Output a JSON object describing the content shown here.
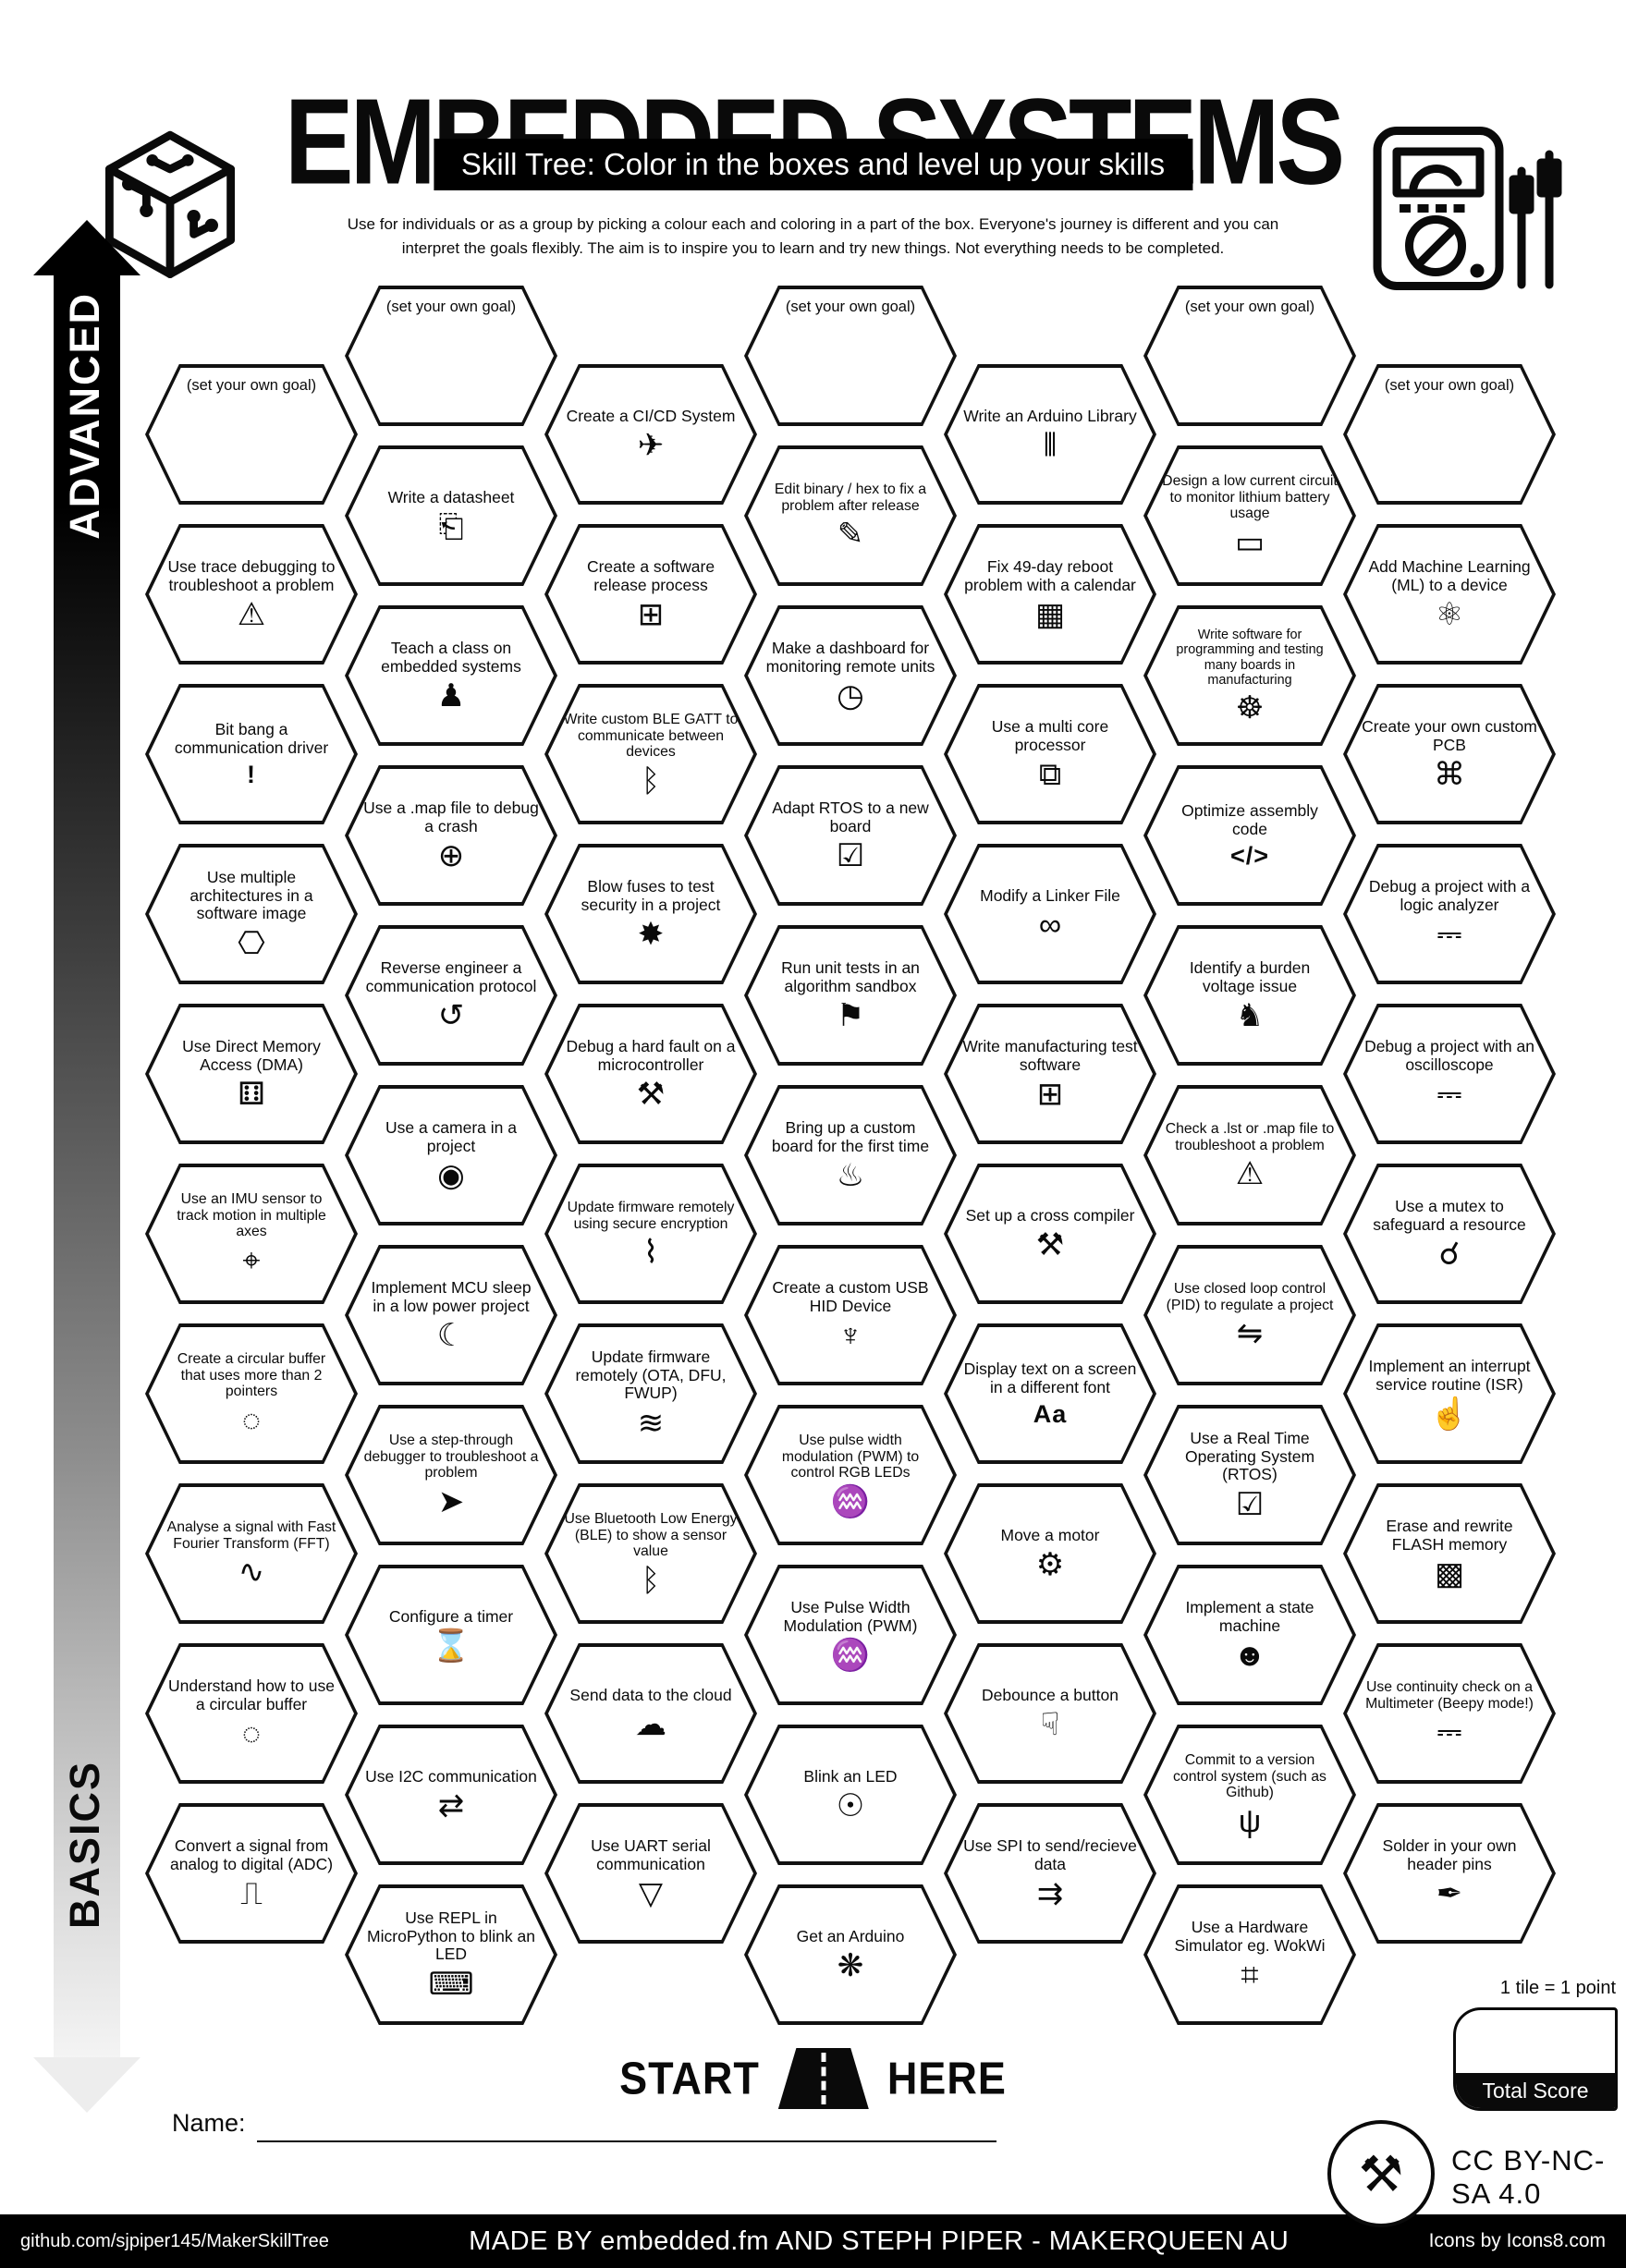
{
  "title": "EMBEDDED SYSTEMS",
  "banner": "Skill Tree:  Color in the boxes and level up your skills",
  "intro": {
    "line1": "Use for individuals or as a group by picking a colour each and coloring in a part of the box.  Everyone's journey is different and you can",
    "line2": "interpret the goals flexibly.  The aim is to inspire you to learn and try new things. Not everything needs to be completed."
  },
  "axis": {
    "advanced": "ADVANCED",
    "basics": "BASICS"
  },
  "start": {
    "word1": "START",
    "word2": "HERE"
  },
  "name_label": "Name:",
  "score": {
    "note": "1 tile = 1 point",
    "label": "Total Score"
  },
  "license": "CC BY-NC-SA 4.0",
  "footer": {
    "left": "github.com/sjpiper145/MakerSkillTree",
    "center": "MADE BY embedded.fm AND STEPH PIPER  -  MAKERQUEEN AU",
    "right": "Icons by Icons8.com"
  },
  "colors": {
    "ink": "#0a0a0a",
    "paper": "#ffffff"
  },
  "tiles": [
    {
      "c": 1,
      "r": 0,
      "goal": true,
      "label": "(set your own goal)",
      "icon": null
    },
    {
      "c": 1,
      "r": 1,
      "label": "Use trace debugging to troubleshoot a problem",
      "icon": "monitor-alert-icon"
    },
    {
      "c": 1,
      "r": 2,
      "label": "Bit bang a communication driver",
      "icon": "exclamation-icon"
    },
    {
      "c": 1,
      "r": 3,
      "label": "Use multiple architectures in a software image",
      "icon": "cube-network-icon"
    },
    {
      "c": 1,
      "r": 4,
      "label": "Use Direct Memory Access (DMA)",
      "icon": "dice-icon"
    },
    {
      "c": 1,
      "r": 5,
      "label": "Use an IMU sensor to track motion in multiple axes",
      "icon": "axes-cube-icon"
    },
    {
      "c": 1,
      "r": 6,
      "label": "Create a circular buffer that uses more than 2 pointers",
      "icon": "ring-buffer-icon"
    },
    {
      "c": 1,
      "r": 7,
      "label": "Analyse a signal with Fast Fourier Transform (FFT)",
      "icon": "waveform-magnifier-icon"
    },
    {
      "c": 1,
      "r": 8,
      "label": "Understand how to use a circular buffer",
      "icon": "ring-buffer-icon"
    },
    {
      "c": 1,
      "r": 9,
      "label": "Convert a signal from analog to digital (ADC)",
      "icon": "adc-wave-icon"
    },
    {
      "c": 2,
      "r": 0,
      "goal": true,
      "label": "(set your own goal)",
      "icon": null
    },
    {
      "c": 2,
      "r": 1,
      "label": "Write a datasheet",
      "icon": "document-icon"
    },
    {
      "c": 2,
      "r": 2,
      "label": "Teach a class on embedded systems",
      "icon": "teacher-icon"
    },
    {
      "c": 2,
      "r": 3,
      "label": "Use a .map file to debug a crash",
      "icon": "globe-icon"
    },
    {
      "c": 2,
      "r": 4,
      "label": "Reverse engineer a communication protocol",
      "icon": "gear-arrows-icon"
    },
    {
      "c": 2,
      "r": 5,
      "label": "Use a camera in a project",
      "icon": "camera-icon"
    },
    {
      "c": 2,
      "r": 6,
      "label": "Implement MCU sleep in a low power project",
      "icon": "sleep-icon"
    },
    {
      "c": 2,
      "r": 7,
      "label": "Use a step-through debugger to troubleshoot a problem",
      "icon": "monitor-bug-icon"
    },
    {
      "c": 2,
      "r": 8,
      "label": "Configure a timer",
      "icon": "stopwatch-icon"
    },
    {
      "c": 2,
      "r": 9,
      "label": "Use I2C communication",
      "icon": "i2c-arrow-icon"
    },
    {
      "c": 2,
      "r": 10,
      "label": "Use REPL in MicroPython to blink an LED",
      "icon": "python-icon"
    },
    {
      "c": 3,
      "r": 0,
      "label": "Create a CI/CD System",
      "icon": "rocket-box-icon"
    },
    {
      "c": 3,
      "r": 1,
      "label": "Create a software release process",
      "icon": "release-box-icon"
    },
    {
      "c": 3,
      "r": 2,
      "label": "Write custom BLE GATT to communicate between devices",
      "icon": "bluetooth-icon"
    },
    {
      "c": 3,
      "r": 3,
      "label": "Blow fuses to test security in a project",
      "icon": "explosion-icon"
    },
    {
      "c": 3,
      "r": 4,
      "label": "Debug a hard fault on a microcontroller",
      "icon": "tools-icon"
    },
    {
      "c": 3,
      "r": 5,
      "label": "Update firmware remotely using secure encryption",
      "icon": "wifi-lock-icon"
    },
    {
      "c": 3,
      "r": 6,
      "label": "Update firmware remotely (OTA, DFU, FWUP)",
      "icon": "wifi-icon"
    },
    {
      "c": 3,
      "r": 7,
      "label": "Use Bluetooth Low Energy (BLE) to show a sensor value",
      "icon": "bluetooth-icon"
    },
    {
      "c": 3,
      "r": 8,
      "label": "Send data to the cloud",
      "icon": "cloud-icon"
    },
    {
      "c": 3,
      "r": 9,
      "label": "Use UART serial communication",
      "icon": "droplet-icon"
    },
    {
      "c": 4,
      "r": 0,
      "goal": true,
      "label": "(set your own goal)",
      "icon": null
    },
    {
      "c": 4,
      "r": 1,
      "label": "Edit binary / hex to fix a problem after release",
      "icon": "pencil-icon"
    },
    {
      "c": 4,
      "r": 2,
      "label": "Make a dashboard for monitoring remote units",
      "icon": "gauge-icon"
    },
    {
      "c": 4,
      "r": 3,
      "label": "Adapt RTOS to a new board",
      "icon": "monitor-check-icon"
    },
    {
      "c": 4,
      "r": 4,
      "label": "Run unit tests in an algorithm sandbox",
      "icon": "sandbox-icon"
    },
    {
      "c": 4,
      "r": 5,
      "label": "Bring up a custom board for the first time",
      "icon": "cake-icon"
    },
    {
      "c": 4,
      "r": 6,
      "label": "Create a custom USB HID Device",
      "icon": "usb-icon"
    },
    {
      "c": 4,
      "r": 7,
      "label": "Use pulse width modulation (PWM) to control RGB LEDs",
      "icon": "pwm-wave-icon"
    },
    {
      "c": 4,
      "r": 8,
      "label": "Use Pulse Width Modulation (PWM)",
      "icon": "pwm-wave-icon"
    },
    {
      "c": 4,
      "r": 9,
      "label": "Blink an LED",
      "icon": "led-icon"
    },
    {
      "c": 4,
      "r": 10,
      "label": "Get an Arduino",
      "icon": "party-popper-icon"
    },
    {
      "c": 5,
      "r": 0,
      "label": "Write an Arduino Library",
      "icon": "bookshelf-icon"
    },
    {
      "c": 5,
      "r": 1,
      "label": "Fix 49-day reboot problem with a calendar",
      "icon": "calendar-icon"
    },
    {
      "c": 5,
      "r": 2,
      "label": "Use a multi core processor",
      "icon": "cubes-icon"
    },
    {
      "c": 5,
      "r": 3,
      "label": "Modify a Linker File",
      "icon": "chain-link-icon"
    },
    {
      "c": 5,
      "r": 4,
      "label": "Write manufacturing test software",
      "icon": "release-box-icon"
    },
    {
      "c": 5,
      "r": 5,
      "label": "Set up a cross compiler",
      "icon": "crossed-tools-icon"
    },
    {
      "c": 5,
      "r": 6,
      "label": "Display text on a screen in a different font",
      "icon": "font-icon"
    },
    {
      "c": 5,
      "r": 7,
      "label": "Move a motor",
      "icon": "motor-icon"
    },
    {
      "c": 5,
      "r": 8,
      "label": "Debounce a button",
      "icon": "press-finger-icon"
    },
    {
      "c": 5,
      "r": 9,
      "label": "Use SPI to send/recieve data",
      "icon": "spi-arrow-icon"
    },
    {
      "c": 6,
      "r": 0,
      "goal": true,
      "label": "(set your own goal)",
      "icon": null
    },
    {
      "c": 6,
      "r": 1,
      "label": "Design a low current circuit to monitor lithium battery usage",
      "icon": "battery-icon"
    },
    {
      "c": 6,
      "r": 2,
      "label": "Write software for programming and testing many boards in manufacturing",
      "icon": "octopus-icon"
    },
    {
      "c": 6,
      "r": 3,
      "label": "Optimize assembly code",
      "icon": "code-icon"
    },
    {
      "c": 6,
      "r": 4,
      "label": "Identify a burden voltage issue",
      "icon": "donkey-icon"
    },
    {
      "c": 6,
      "r": 5,
      "label": "Check a .lst or .map file to troubleshoot a problem",
      "icon": "monitor-alert-icon"
    },
    {
      "c": 6,
      "r": 6,
      "label": "Use closed loop control (PID) to regulate a project",
      "icon": "loop-arrows-icon"
    },
    {
      "c": 6,
      "r": 7,
      "label": "Use a Real Time Operating System (RTOS)",
      "icon": "monitor-check-icon"
    },
    {
      "c": 6,
      "r": 8,
      "label": "Implement a state machine",
      "icon": "robot-icon"
    },
    {
      "c": 6,
      "r": 9,
      "label": "Commit to a version control system (such as Github)",
      "icon": "git-branch-icon"
    },
    {
      "c": 6,
      "r": 10,
      "label": "Use a Hardware Simulator eg. WokWi",
      "icon": "laptop-sim-icon"
    },
    {
      "c": 7,
      "r": 0,
      "goal": true,
      "label": "(set your own goal)",
      "icon": null
    },
    {
      "c": 7,
      "r": 1,
      "label": "Add Machine Learning (ML) to a device",
      "icon": "ml-head-icon"
    },
    {
      "c": 7,
      "r": 2,
      "label": "Create your own custom PCB",
      "icon": "pcb-icon"
    },
    {
      "c": 7,
      "r": 3,
      "label": "Debug a project with a logic analyzer",
      "icon": "multimeter-icon"
    },
    {
      "c": 7,
      "r": 4,
      "label": "Debug a project with an oscilloscope",
      "icon": "multimeter-icon"
    },
    {
      "c": 7,
      "r": 5,
      "label": "Use a mutex to safeguard a resource",
      "icon": "handshake-icon"
    },
    {
      "c": 7,
      "r": 6,
      "label": "Implement an interrupt service routine (ISR)",
      "icon": "stop-hand-icon"
    },
    {
      "c": 7,
      "r": 7,
      "label": "Erase and rewrite FLASH memory",
      "icon": "memory-chip-icon"
    },
    {
      "c": 7,
      "r": 8,
      "label": "Use continuity check on a Multimeter (Beepy mode!)",
      "icon": "multimeter-icon"
    },
    {
      "c": 7,
      "r": 9,
      "label": "Solder in your own header pins",
      "icon": "soldering-iron-icon"
    }
  ]
}
